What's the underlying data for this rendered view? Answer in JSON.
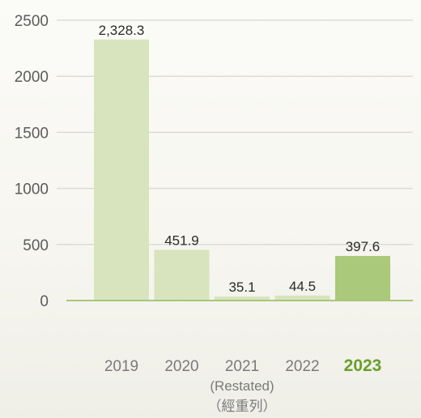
{
  "chart_data": {
    "type": "bar",
    "categories": [
      "2019",
      "2020",
      "2021",
      "2022",
      "2023"
    ],
    "category_notes": {
      "2021": [
        "(Restated)",
        "（經重列）"
      ]
    },
    "highlight_category": "2023",
    "values": [
      2328.3,
      451.9,
      35.1,
      44.5,
      397.6
    ],
    "data_labels": [
      "2,328.3",
      "451.9",
      "35.1",
      "44.5",
      "397.6"
    ],
    "y_ticks": [
      0,
      500,
      1000,
      1500,
      2000,
      2500
    ],
    "ylim": [
      0,
      2500
    ],
    "grid": true,
    "title": "",
    "xlabel": "",
    "ylabel": ""
  },
  "colors": {
    "bar": "#d7e4bd",
    "bar_highlight": "#aac97b",
    "baseline": "#a8c67c",
    "grid": "#dcdcd6"
  }
}
